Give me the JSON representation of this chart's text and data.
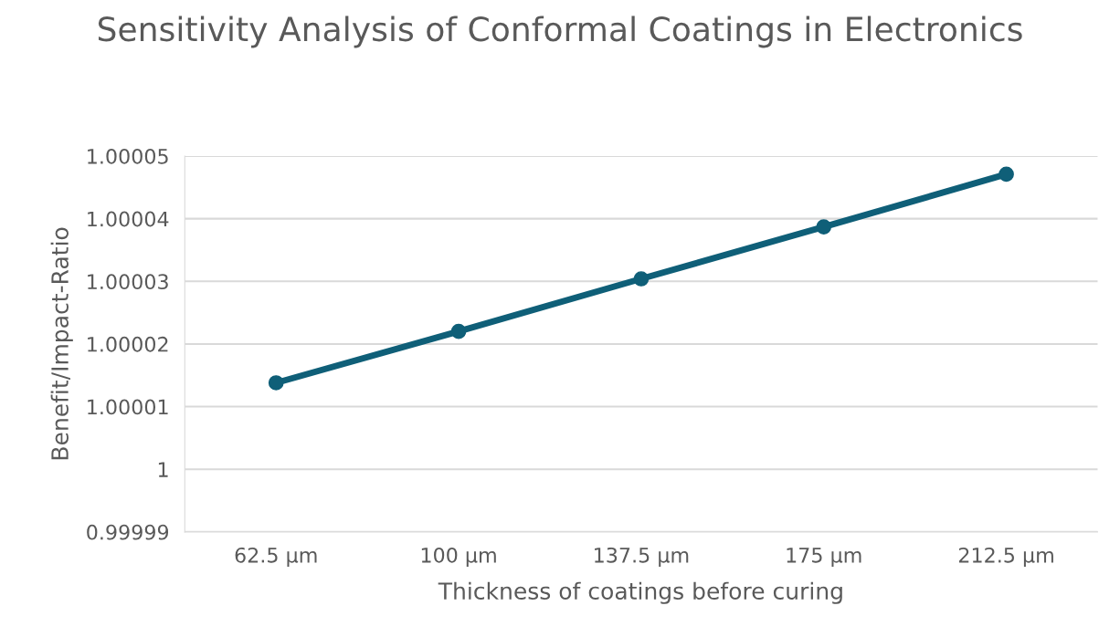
{
  "chart_data": {
    "type": "line",
    "title": "Sensitivity Analysis of Conformal Coatings in Electronics",
    "xlabel": "Thickness of coatings before curing",
    "ylabel": "Benefit/Impact-Ratio",
    "categories": [
      "62.5 µm",
      "100 µm",
      "137.5 µm",
      "175 µm",
      "212.5 µm"
    ],
    "series": [
      {
        "color": "#0f5f78",
        "values": [
          1.0000138,
          1.000022,
          1.0000304,
          1.0000387,
          1.0000471
        ]
      }
    ],
    "ylim": [
      0.99999,
      1.00005
    ],
    "yticks": [
      0.99999,
      1,
      1.00001,
      1.00002,
      1.00003,
      1.00004,
      1.00005
    ],
    "grid": "y",
    "marker": "circle",
    "line_style": "solid"
  }
}
